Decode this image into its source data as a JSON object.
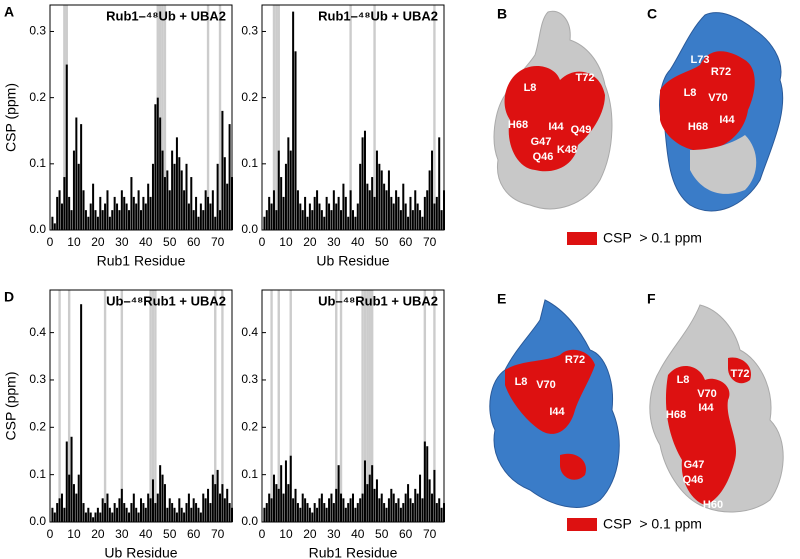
{
  "chart_data": [
    {
      "type": "bar",
      "panel_label": "A",
      "title": "Rub1–⁴⁸Ub + UBA2",
      "x_label": "Rub1 Residue",
      "y_label": "CSP (ppm)",
      "color": "#000000",
      "shade_color": "#cccccc",
      "x": [
        1,
        2,
        3,
        4,
        5,
        6,
        7,
        8,
        9,
        10,
        11,
        12,
        13,
        14,
        15,
        16,
        17,
        18,
        19,
        20,
        21,
        22,
        23,
        24,
        25,
        26,
        27,
        28,
        29,
        30,
        31,
        32,
        33,
        34,
        35,
        36,
        37,
        38,
        39,
        40,
        41,
        42,
        43,
        44,
        45,
        46,
        47,
        48,
        49,
        50,
        51,
        52,
        53,
        54,
        55,
        56,
        57,
        58,
        59,
        60,
        61,
        62,
        63,
        64,
        65,
        66,
        67,
        68,
        69,
        70,
        71,
        72,
        73,
        74,
        75,
        76
      ],
      "values": [
        0.02,
        0.01,
        0.05,
        0.06,
        0.04,
        0.08,
        0.25,
        0.05,
        0.03,
        0.12,
        0.17,
        0.1,
        0.16,
        0.06,
        0.03,
        0.02,
        0.04,
        0.07,
        0.03,
        0.02,
        0.05,
        0.03,
        0.04,
        0.06,
        0.02,
        0.03,
        0.05,
        0.04,
        0.03,
        0.06,
        0.05,
        0.04,
        0.03,
        0.08,
        0.05,
        0.04,
        0.06,
        0.03,
        0.05,
        0.04,
        0.07,
        0.05,
        0.1,
        0.19,
        0.2,
        0.17,
        0.12,
        0.08,
        0.09,
        0.06,
        0.12,
        0.1,
        0.14,
        0.11,
        0.09,
        0.06,
        0.1,
        0.04,
        0.08,
        0.03,
        0.05,
        0.02,
        0.04,
        0.03,
        0.06,
        0.05,
        0.04,
        0.06,
        0.02,
        0.1,
        0.03,
        0.18,
        0.11,
        0.07,
        0.16,
        0.08
      ],
      "shaded_residues": [
        6,
        7,
        45,
        46,
        47,
        48,
        66,
        71
      ],
      "xlim": [
        0,
        76
      ],
      "xticks": [
        0,
        10,
        20,
        30,
        40,
        50,
        60,
        70
      ],
      "ylim": [
        0,
        0.34
      ],
      "yticks": [
        {
          "value": 0,
          "label": "0.0"
        },
        0.1,
        0.2,
        0.3
      ]
    },
    {
      "type": "bar",
      "title": "Rub1–⁴⁸Ub + UBA2",
      "x_label": "Ub Residue",
      "color": "#000000",
      "shade_color": "#cccccc",
      "x": [
        1,
        2,
        3,
        4,
        5,
        6,
        7,
        8,
        9,
        10,
        11,
        12,
        13,
        14,
        15,
        16,
        17,
        18,
        19,
        20,
        21,
        22,
        23,
        24,
        25,
        26,
        27,
        28,
        29,
        30,
        31,
        32,
        33,
        34,
        35,
        36,
        37,
        38,
        39,
        40,
        41,
        42,
        43,
        44,
        45,
        46,
        47,
        48,
        49,
        50,
        51,
        52,
        53,
        54,
        55,
        56,
        57,
        58,
        59,
        60,
        61,
        62,
        63,
        64,
        65,
        66,
        67,
        68,
        69,
        70,
        71,
        72,
        73,
        74,
        75,
        76
      ],
      "values": [
        0.02,
        0.03,
        0.05,
        0.04,
        0.06,
        0.03,
        0.12,
        0.08,
        0.05,
        0.1,
        0.14,
        0.12,
        0.33,
        0.27,
        0.06,
        0.04,
        0.03,
        0.05,
        0.02,
        0.04,
        0.03,
        0.05,
        0.06,
        0.04,
        0.03,
        0.02,
        0.05,
        0.04,
        0.03,
        0.06,
        0.04,
        0.05,
        0.03,
        0.07,
        0.05,
        0.02,
        0.06,
        0.03,
        0.02,
        0.04,
        0.1,
        0.14,
        0.15,
        0.07,
        0.06,
        0.08,
        0.05,
        0.12,
        0.1,
        0.09,
        0.07,
        0.06,
        0.09,
        0.05,
        0.04,
        0.06,
        0.05,
        0.03,
        0.07,
        0.04,
        0.02,
        0.05,
        0.03,
        0.06,
        0.04,
        0.03,
        0.02,
        0.05,
        0.06,
        0.09,
        0.12,
        0.04,
        0.05,
        0.14,
        0.03,
        0.06
      ],
      "shaded_residues": [
        5,
        6,
        7,
        37,
        47,
        72
      ],
      "xlim": [
        0,
        76
      ],
      "xticks": [
        0,
        10,
        20,
        30,
        40,
        50,
        60,
        70
      ],
      "ylim": [
        0,
        0.34
      ],
      "yticks": [
        {
          "value": 0,
          "label": "0.0"
        },
        0.1,
        0.2,
        0.3
      ]
    },
    {
      "type": "bar",
      "panel_label": "D",
      "title": "Ub–⁴⁸Rub1 + UBA2",
      "x_label": "Ub Residue",
      "y_label": "CSP (ppm)",
      "color": "#000000",
      "shade_color": "#cccccc",
      "x": [
        1,
        2,
        3,
        4,
        5,
        6,
        7,
        8,
        9,
        10,
        11,
        12,
        13,
        14,
        15,
        16,
        17,
        18,
        19,
        20,
        21,
        22,
        23,
        24,
        25,
        26,
        27,
        28,
        29,
        30,
        31,
        32,
        33,
        34,
        35,
        36,
        37,
        38,
        39,
        40,
        41,
        42,
        43,
        44,
        45,
        46,
        47,
        48,
        49,
        50,
        51,
        52,
        53,
        54,
        55,
        56,
        57,
        58,
        59,
        60,
        61,
        62,
        63,
        64,
        65,
        66,
        67,
        68,
        69,
        70,
        71,
        72,
        73,
        74,
        75,
        76
      ],
      "values": [
        0.03,
        0.02,
        0.04,
        0.05,
        0.06,
        0.03,
        0.17,
        0.1,
        0.18,
        0.08,
        0.06,
        0.1,
        0.46,
        0.04,
        0.02,
        0.03,
        0.02,
        0.01,
        0.02,
        0.03,
        0.02,
        0.05,
        0.04,
        0.06,
        0.03,
        0.02,
        0.04,
        0.03,
        0.05,
        0.07,
        0.04,
        0.03,
        0.02,
        0.04,
        0.06,
        0.03,
        0.02,
        0.05,
        0.04,
        0.03,
        0.06,
        0.05,
        0.09,
        0.04,
        0.06,
        0.12,
        0.1,
        0.08,
        0.03,
        0.05,
        0.04,
        0.03,
        0.02,
        0.05,
        0.03,
        0.02,
        0.04,
        0.06,
        0.03,
        0.05,
        0.04,
        0.03,
        0.02,
        0.06,
        0.05,
        0.07,
        0.04,
        0.1,
        0.08,
        0.11,
        0.06,
        0.08,
        0.05,
        0.07,
        0.04,
        0.03
      ],
      "shaded_residues": [
        4,
        8,
        23,
        30,
        42,
        43,
        44,
        69,
        72
      ],
      "xlim": [
        0,
        76
      ],
      "xticks": [
        0,
        10,
        20,
        30,
        40,
        50,
        60,
        70
      ],
      "ylim": [
        0,
        0.49
      ],
      "yticks": [
        {
          "value": 0,
          "label": "0.0"
        },
        0.1,
        0.2,
        0.3,
        0.4
      ]
    },
    {
      "type": "bar",
      "title": "Ub–⁴⁸Rub1 + UBA2",
      "x_label": "Rub1 Residue",
      "color": "#000000",
      "shade_color": "#cccccc",
      "x": [
        1,
        2,
        3,
        4,
        5,
        6,
        7,
        8,
        9,
        10,
        11,
        12,
        13,
        14,
        15,
        16,
        17,
        18,
        19,
        20,
        21,
        22,
        23,
        24,
        25,
        26,
        27,
        28,
        29,
        30,
        31,
        32,
        33,
        34,
        35,
        36,
        37,
        38,
        39,
        40,
        41,
        42,
        43,
        44,
        45,
        46,
        47,
        48,
        49,
        50,
        51,
        52,
        53,
        54,
        55,
        56,
        57,
        58,
        59,
        60,
        61,
        62,
        63,
        64,
        65,
        66,
        67,
        68,
        69,
        70,
        71,
        72,
        73,
        74,
        75,
        76
      ],
      "values": [
        0.03,
        0.04,
        0.06,
        0.05,
        0.1,
        0.08,
        0.07,
        0.12,
        0.06,
        0.13,
        0.08,
        0.14,
        0.05,
        0.07,
        0.04,
        0.03,
        0.06,
        0.05,
        0.04,
        0.03,
        0.02,
        0.04,
        0.03,
        0.05,
        0.06,
        0.04,
        0.03,
        0.05,
        0.06,
        0.04,
        0.07,
        0.12,
        0.06,
        0.05,
        0.03,
        0.04,
        0.05,
        0.06,
        0.03,
        0.04,
        0.05,
        0.06,
        0.13,
        0.08,
        0.1,
        0.12,
        0.07,
        0.09,
        0.05,
        0.06,
        0.04,
        0.03,
        0.05,
        0.07,
        0.06,
        0.04,
        0.05,
        0.03,
        0.04,
        0.06,
        0.08,
        0.05,
        0.04,
        0.07,
        0.06,
        0.1,
        0.05,
        0.17,
        0.16,
        0.09,
        0.06,
        0.11,
        0.04,
        0.05,
        0.03,
        0.04
      ],
      "shaded_residues": [
        4,
        7,
        12,
        31,
        33,
        42,
        43,
        44,
        45,
        46,
        68,
        72
      ],
      "xlim": [
        0,
        76
      ],
      "xticks": [
        0,
        10,
        20,
        30,
        40,
        50,
        60,
        70
      ],
      "ylim": [
        0,
        0.49
      ],
      "yticks": [
        {
          "value": 0,
          "label": "0.0"
        },
        0.1,
        0.2,
        0.3,
        0.4
      ]
    }
  ],
  "structures": [
    {
      "panel": "B",
      "labels": [
        "L8",
        "T72",
        "H68",
        "I44",
        "Q49",
        "G47",
        "Q46",
        "K48"
      ]
    },
    {
      "panel": "C",
      "labels": [
        "L73",
        "R72",
        "L8",
        "V70",
        "H68",
        "I44"
      ]
    },
    {
      "panel": "E",
      "labels": [
        "R72",
        "L8",
        "V70",
        "I44"
      ]
    },
    {
      "panel": "F",
      "labels": [
        "T72",
        "L8",
        "V70",
        "I44",
        "H68",
        "G47",
        "Q46",
        "H60"
      ]
    }
  ],
  "legends": [
    "CSP  > 0.1 ppm",
    "CSP  > 0.1 ppm"
  ]
}
